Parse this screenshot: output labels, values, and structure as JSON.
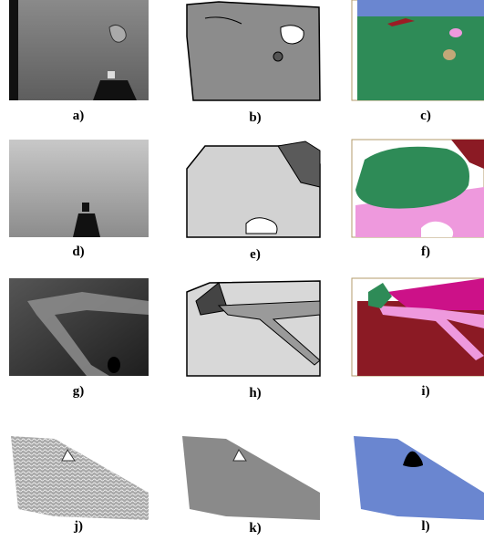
{
  "panels": [
    {
      "label": "a)"
    },
    {
      "label": "b)"
    },
    {
      "label": "c)"
    },
    {
      "label": "d)"
    },
    {
      "label": "e)"
    },
    {
      "label": "f)"
    },
    {
      "label": "g)"
    },
    {
      "label": "h)"
    },
    {
      "label": "i)"
    },
    {
      "label": "j)"
    },
    {
      "label": "k)"
    },
    {
      "label": "l)"
    }
  ]
}
